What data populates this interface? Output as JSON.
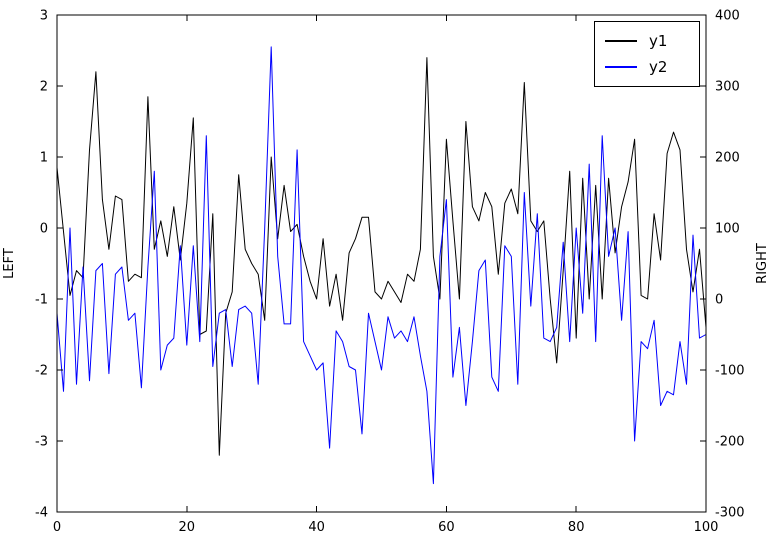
{
  "figure": {
    "background": "#ffffff"
  },
  "legend": {
    "position": "upper right",
    "entries": [
      {
        "label": "y1",
        "color": "#000000"
      },
      {
        "label": "y2",
        "color": "#0000ff"
      }
    ]
  },
  "chart_data": {
    "type": "line",
    "title": "",
    "xlabel": "",
    "ylabel_left": "LEFT",
    "ylabel_right": "RIGHT",
    "xlim": [
      0,
      100
    ],
    "ylim_left": [
      -4,
      3
    ],
    "ylim_right": [
      -300,
      400
    ],
    "xticks": [
      0,
      20,
      40,
      60,
      80,
      100
    ],
    "yticks_left": [
      -4,
      -3,
      -2,
      -1,
      0,
      1,
      2,
      3
    ],
    "yticks_right": [
      -300,
      -200,
      -100,
      0,
      100,
      200,
      300,
      400
    ],
    "grid": false,
    "legend_position": "upper right",
    "x": [
      0,
      1,
      2,
      3,
      4,
      5,
      6,
      7,
      8,
      9,
      10,
      11,
      12,
      13,
      14,
      15,
      16,
      17,
      18,
      19,
      20,
      21,
      22,
      23,
      24,
      25,
      26,
      27,
      28,
      29,
      30,
      31,
      32,
      33,
      34,
      35,
      36,
      37,
      38,
      39,
      40,
      41,
      42,
      43,
      44,
      45,
      46,
      47,
      48,
      49,
      50,
      51,
      52,
      53,
      54,
      55,
      56,
      57,
      58,
      59,
      60,
      61,
      62,
      63,
      64,
      65,
      66,
      67,
      68,
      69,
      70,
      71,
      72,
      73,
      74,
      75,
      76,
      77,
      78,
      79,
      80,
      81,
      82,
      83,
      84,
      85,
      86,
      87,
      88,
      89,
      90,
      91,
      92,
      93,
      94,
      95,
      96,
      97,
      98,
      99,
      100
    ],
    "series": [
      {
        "name": "y1",
        "axis": "left",
        "color": "#000000",
        "values": [
          0.85,
          -0.05,
          -0.95,
          -0.6,
          -0.7,
          1.1,
          2.2,
          0.4,
          -0.3,
          0.45,
          0.4,
          -0.75,
          -0.65,
          -0.7,
          1.85,
          -0.3,
          0.1,
          -0.4,
          0.3,
          -0.45,
          0.35,
          1.55,
          -1.5,
          -1.45,
          0.2,
          -3.2,
          -1.2,
          -0.9,
          0.75,
          -0.3,
          -0.5,
          -0.65,
          -1.3,
          1.0,
          -0.15,
          0.6,
          -0.05,
          0.05,
          -0.4,
          -0.75,
          -1.0,
          -0.15,
          -1.1,
          -0.65,
          -1.3,
          -0.35,
          -0.15,
          0.15,
          0.15,
          -0.9,
          -1.0,
          -0.75,
          -0.9,
          -1.05,
          -0.65,
          -0.75,
          -0.3,
          2.4,
          -0.4,
          -1.0,
          1.25,
          0.1,
          -1.0,
          1.5,
          0.3,
          0.1,
          0.5,
          0.3,
          -0.65,
          0.35,
          0.55,
          0.2,
          2.05,
          0.1,
          -0.05,
          0.1,
          -1.0,
          -1.9,
          -0.6,
          0.8,
          -1.55,
          0.7,
          -1.0,
          0.6,
          -1.0,
          0.7,
          -0.35,
          0.3,
          0.65,
          1.25,
          -0.95,
          -1.0,
          0.2,
          -0.45,
          1.05,
          1.35,
          1.1,
          -0.3,
          -0.9,
          -0.3,
          -1.4
        ]
      },
      {
        "name": "y2",
        "axis": "right",
        "color": "#0000ff",
        "values": [
          -20,
          -130,
          100,
          -120,
          45,
          -115,
          40,
          50,
          -105,
          35,
          45,
          -30,
          -20,
          -125,
          45,
          180,
          -100,
          -65,
          -55,
          75,
          -65,
          75,
          -60,
          230,
          -95,
          -20,
          -15,
          -95,
          -15,
          -10,
          -20,
          -120,
          100,
          355,
          60,
          -35,
          -35,
          210,
          -60,
          -80,
          -100,
          -90,
          -210,
          -45,
          -60,
          -95,
          -100,
          -190,
          -20,
          -60,
          -100,
          -25,
          -55,
          -45,
          -60,
          -25,
          -80,
          -130,
          -260,
          60,
          140,
          -110,
          -40,
          -150,
          -60,
          40,
          55,
          -110,
          -130,
          75,
          60,
          -120,
          150,
          -10,
          120,
          -55,
          -60,
          -40,
          80,
          -60,
          100,
          -20,
          190,
          -60,
          230,
          60,
          100,
          -30,
          95,
          -200,
          -60,
          -70,
          -30,
          -150,
          -130,
          -135,
          -60,
          -120,
          90,
          -55,
          -50
        ]
      }
    ]
  }
}
